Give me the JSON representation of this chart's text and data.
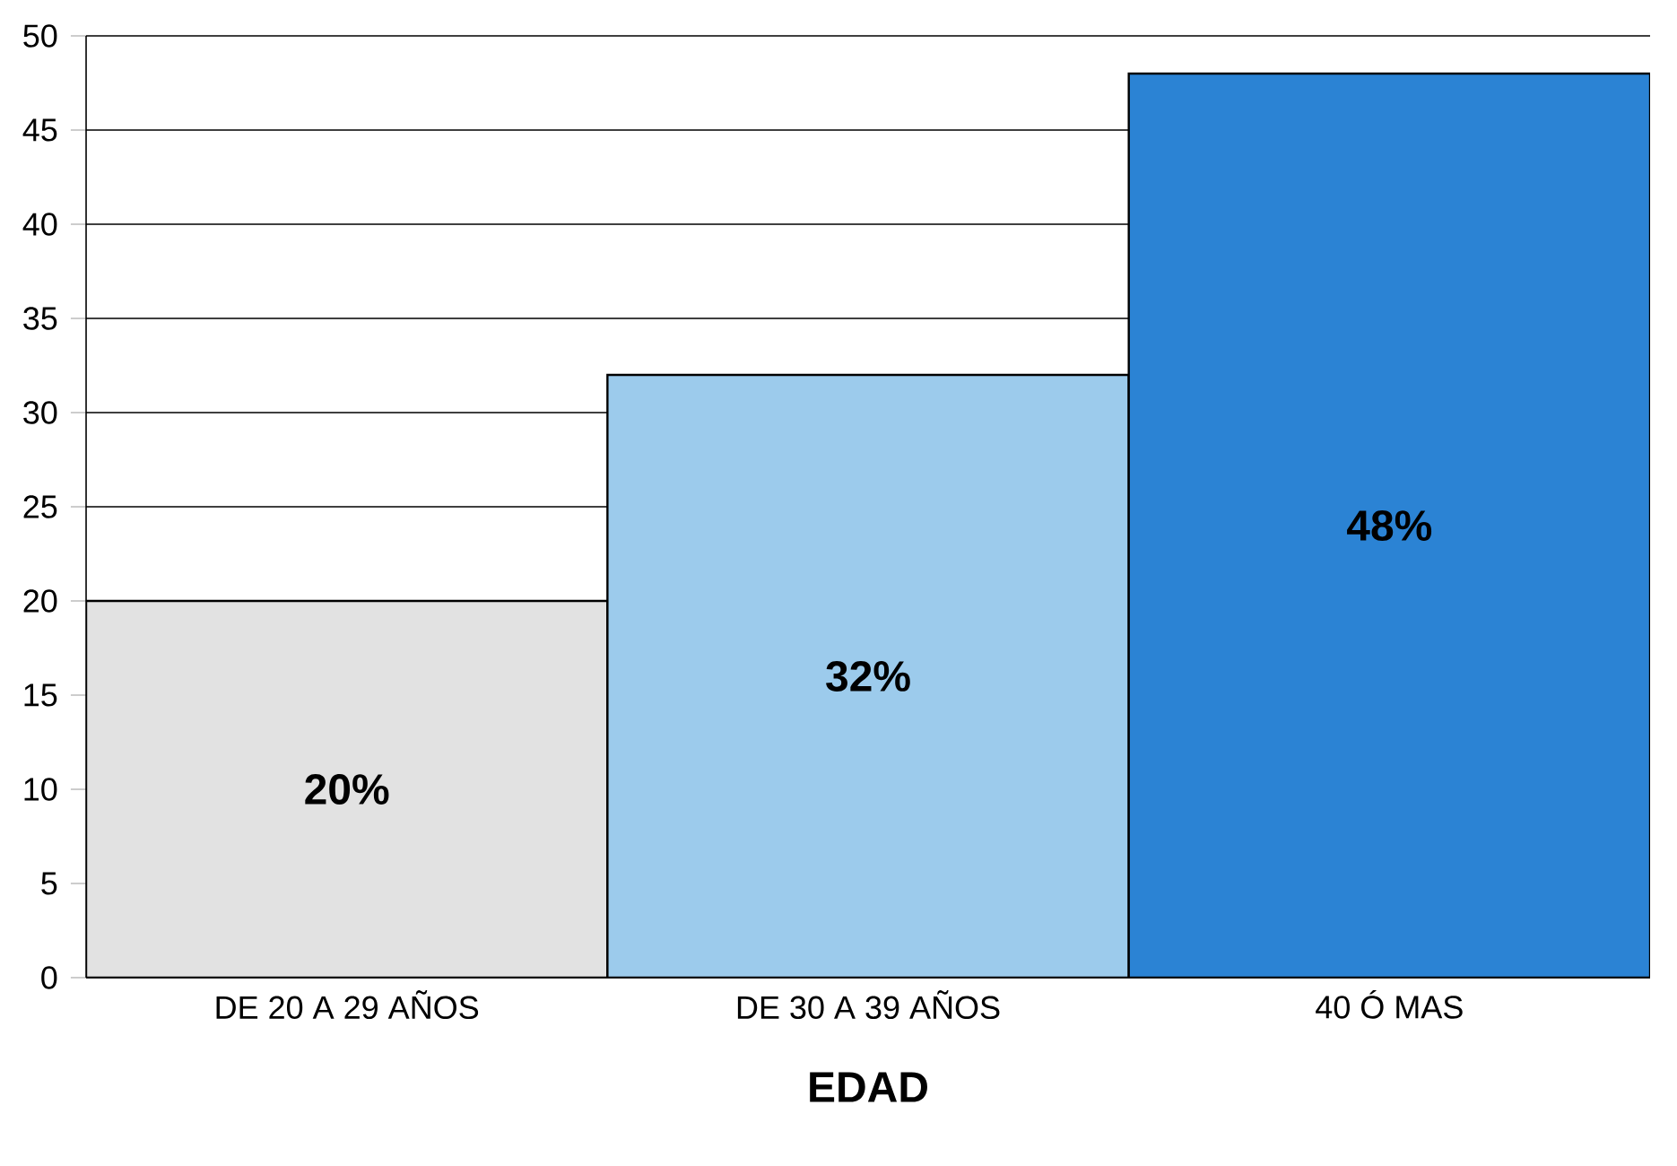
{
  "chart_data": {
    "type": "bar",
    "xlabel": "EDAD",
    "categories": [
      "DE 20 A 29 AÑOS",
      "DE 30 A 39 AÑOS",
      "40 Ó MAS"
    ],
    "values": [
      20,
      32,
      48
    ],
    "colors": [
      "#e2e2e2",
      "#9ccbec",
      "#2b83d4"
    ],
    "value_labels": [
      "20%",
      "32%",
      "48%"
    ],
    "ylim": [
      0,
      50
    ],
    "yticks": [
      0,
      5,
      10,
      15,
      20,
      25,
      30,
      35,
      40,
      45,
      50
    ],
    "grid": "y"
  }
}
